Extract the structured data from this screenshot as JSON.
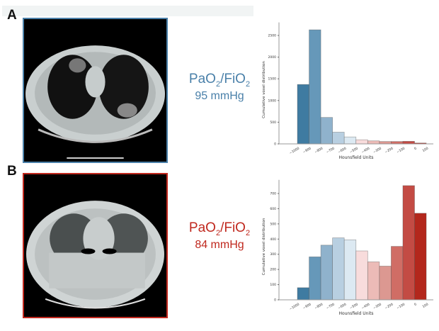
{
  "panels": [
    {
      "label": "A",
      "ratio_main": "PaO",
      "ratio_sub1": "2",
      "ratio_mid": "/FiO",
      "ratio_sub2": "2",
      "value": "95 mmHg",
      "color": "#4a80a9"
    },
    {
      "label": "B",
      "ratio_main": "PaO",
      "ratio_sub1": "2",
      "ratio_mid": "/FiO",
      "ratio_sub2": "2",
      "value": "84 mmHg",
      "color": "#c0281e"
    }
  ],
  "chart_data": [
    {
      "type": "bar",
      "xlabel": "Hounsfield Units",
      "ylabel": "Cumulative voxel distribution",
      "bin_edges": [
        -1000,
        -900,
        -800,
        -700,
        -600,
        -500,
        -400,
        -300,
        -200,
        -100,
        0,
        100
      ],
      "tick_labels": [
        "-1000",
        "-900",
        "-800",
        "-700",
        "-600",
        "-500",
        "-400",
        "-300",
        "-200",
        "-100",
        "0",
        "100"
      ],
      "values": [
        1370,
        2630,
        610,
        270,
        160,
        95,
        70,
        55,
        55,
        60,
        20
      ],
      "yticks": [
        0,
        500,
        1000,
        1500,
        2000,
        2500
      ],
      "ylim": [
        0,
        2800
      ],
      "grid": false
    },
    {
      "type": "bar",
      "xlabel": "Hounsfield Units",
      "ylabel": "Cumulative voxel distribution",
      "bin_edges": [
        -1000,
        -900,
        -800,
        -700,
        -600,
        -500,
        -400,
        -300,
        -200,
        -100,
        0,
        100
      ],
      "tick_labels": [
        "-1000",
        "-900",
        "-800",
        "-700",
        "-600",
        "-500",
        "-400",
        "-300",
        "-200",
        "-100",
        "0",
        "100"
      ],
      "values": [
        80,
        283,
        360,
        408,
        395,
        322,
        250,
        222,
        352,
        752,
        570
      ],
      "yticks": [
        0,
        100,
        200,
        300,
        400,
        500,
        600,
        700
      ],
      "ylim": [
        0,
        790
      ],
      "grid": false
    }
  ],
  "bar_colors": [
    "#3f7ba1",
    "#6698b9",
    "#8fb2cc",
    "#b8cfe1",
    "#dce9f2",
    "#f8dcdc",
    "#ecbbb7",
    "#dc9891",
    "#d06d65",
    "#c34b44",
    "#b3271c"
  ]
}
